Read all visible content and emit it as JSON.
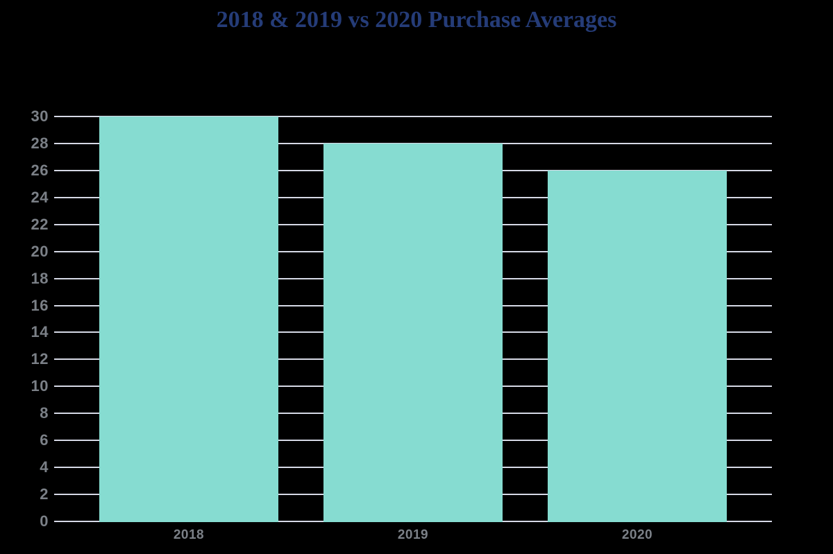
{
  "chart_data": {
    "type": "bar",
    "title": "2018 & 2019 vs 2020 Purchase Averages",
    "categories": [
      "2018",
      "2019",
      "2020"
    ],
    "values": [
      30,
      28,
      26
    ],
    "xlabel": "",
    "ylabel": "",
    "ylim": [
      0,
      30
    ],
    "ytick_step": 2,
    "ytick_labels": [
      "0",
      "2",
      "4",
      "6",
      "8",
      "10",
      "12",
      "14",
      "16",
      "18",
      "20",
      "22",
      "24",
      "26",
      "28",
      "30"
    ],
    "grid": true,
    "legend": false,
    "colors": {
      "background": "#000000",
      "bar_fill": "#86dcd1",
      "gridline": "#d6d9e6",
      "tick_label": "#7b8087",
      "title": "#253c78"
    }
  }
}
